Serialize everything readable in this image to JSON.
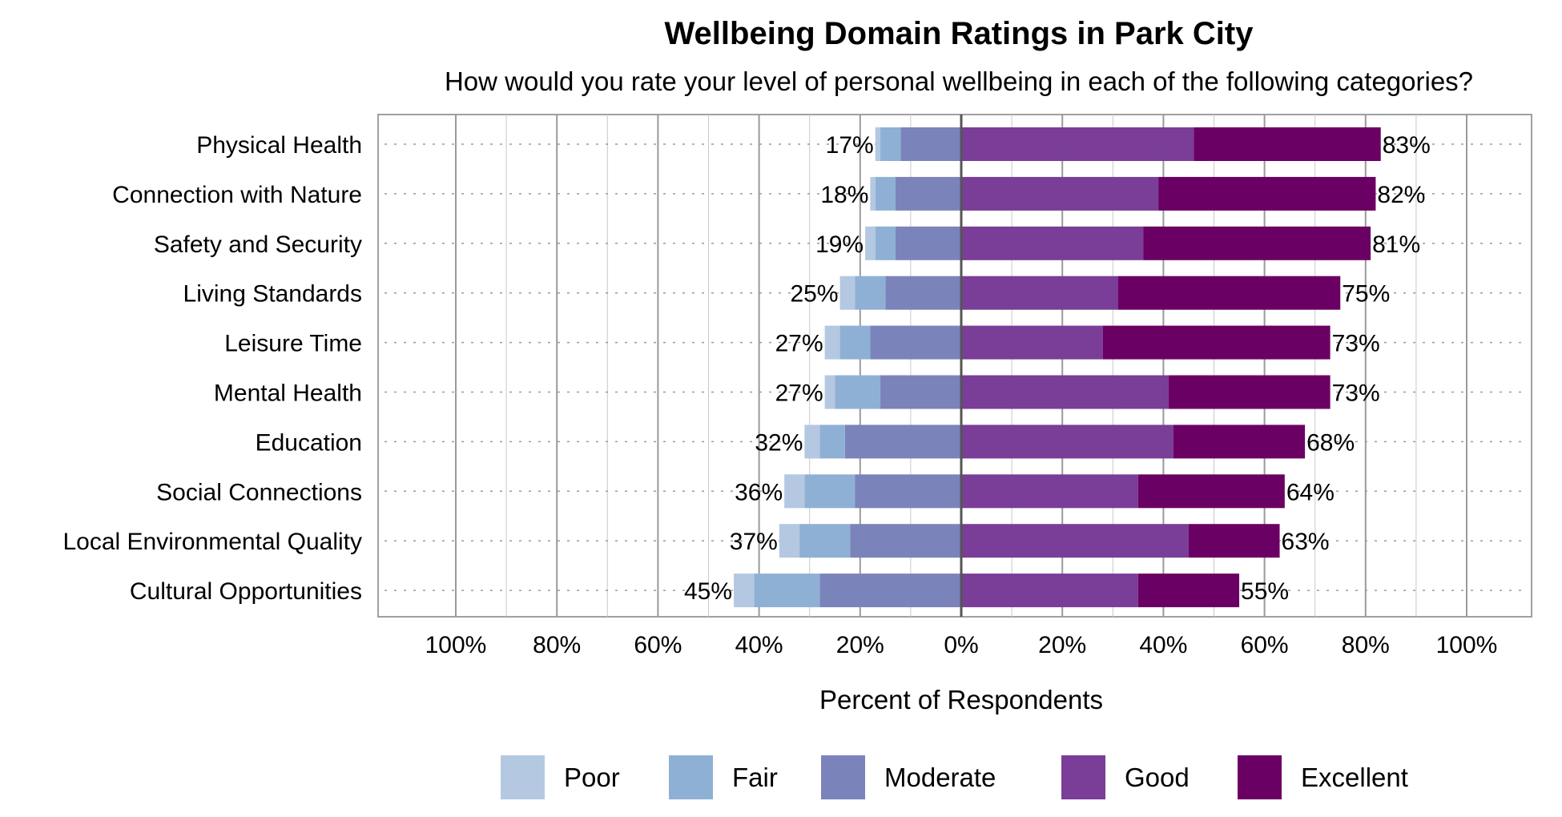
{
  "chart_data": {
    "type": "bar",
    "orientation": "horizontal",
    "stacked": "diverging",
    "title": "Wellbeing Domain Ratings in Park City",
    "subtitle": "How would you rate your level of personal wellbeing in each of the following categories?",
    "xlabel": "Percent of Respondents",
    "ylabel": "",
    "xlim": [
      -100,
      100
    ],
    "x_ticks": [
      -100,
      -80,
      -60,
      -40,
      -20,
      0,
      20,
      40,
      60,
      80,
      100
    ],
    "x_tick_labels": [
      "100%",
      "80%",
      "60%",
      "40%",
      "20%",
      "0%",
      "20%",
      "40%",
      "60%",
      "80%",
      "100%"
    ],
    "grid": true,
    "legend_position": "bottom",
    "categories": [
      "Physical Health",
      "Connection with Nature",
      "Safety and Security",
      "Living Standards",
      "Leisure Time",
      "Mental Health",
      "Education",
      "Social Connections",
      "Local Environmental Quality",
      "Cultural Opportunities"
    ],
    "negative_series": [
      "Poor",
      "Fair",
      "Moderate"
    ],
    "positive_series": [
      "Good",
      "Excellent"
    ],
    "series": [
      {
        "name": "Poor",
        "color": "#b4c8e1",
        "values": [
          1,
          1,
          2,
          3,
          3,
          2,
          3,
          4,
          4,
          4
        ]
      },
      {
        "name": "Fair",
        "color": "#8eb0d4",
        "values": [
          4,
          4,
          4,
          6,
          6,
          9,
          5,
          10,
          10,
          13
        ]
      },
      {
        "name": "Moderate",
        "color": "#7b83bb",
        "values": [
          12,
          13,
          13,
          15,
          18,
          16,
          23,
          21,
          22,
          28
        ]
      },
      {
        "name": "Good",
        "color": "#7a3d98",
        "values": [
          46,
          39,
          36,
          31,
          28,
          41,
          42,
          35,
          45,
          35
        ]
      },
      {
        "name": "Excellent",
        "color": "#6b0064",
        "values": [
          37,
          43,
          45,
          44,
          45,
          32,
          26,
          29,
          18,
          20
        ]
      }
    ],
    "negative_totals": [
      "17%",
      "18%",
      "19%",
      "25%",
      "27%",
      "27%",
      "32%",
      "36%",
      "37%",
      "45%"
    ],
    "positive_totals": [
      "83%",
      "82%",
      "81%",
      "75%",
      "73%",
      "73%",
      "68%",
      "64%",
      "63%",
      "55%"
    ]
  }
}
